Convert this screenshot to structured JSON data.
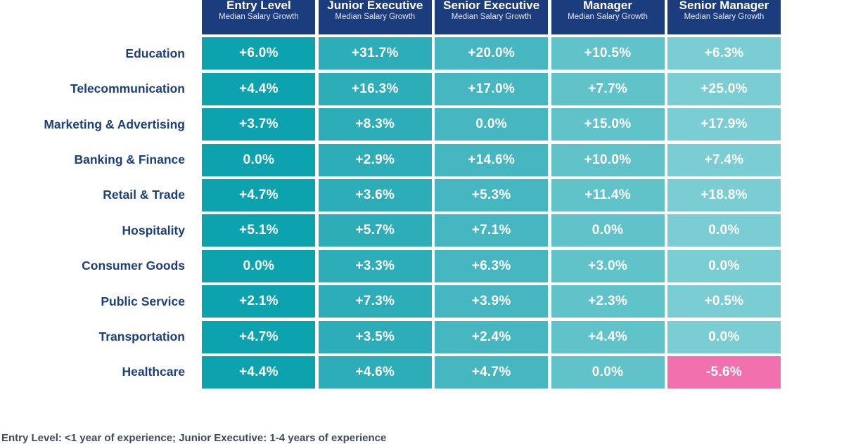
{
  "colors": {
    "header_bg": "#1B3D7D",
    "row_label_text": "#1C3F80",
    "cell_text": "#FFFFFF",
    "negative_cell_bg": "#F170AD",
    "footnote_text": "#3F4A5A",
    "column_colors": [
      "#0CA3AF",
      "#2CADB7",
      "#46B7C0",
      "#60C3CA",
      "#7ACDD3"
    ]
  },
  "table": {
    "columns": [
      {
        "title": "Entry Level",
        "subtitle": "Median Salary Growth",
        "color": "#0CA3AF"
      },
      {
        "title": "Junior Executive",
        "subtitle": "Median Salary Growth",
        "color": "#2CADB7"
      },
      {
        "title": "Senior Executive",
        "subtitle": "Median Salary Growth",
        "color": "#46B7C0"
      },
      {
        "title": "Manager",
        "subtitle": "Median Salary Growth",
        "color": "#60C3CA"
      },
      {
        "title": "Senior Manager",
        "subtitle": "Median Salary Growth",
        "color": "#7ACDD3"
      }
    ],
    "rows": [
      {
        "label": "Education",
        "values": [
          "+6.0%",
          "+31.7%",
          "+20.0%",
          "+10.5%",
          "+6.3%"
        ]
      },
      {
        "label": "Telecommunication",
        "values": [
          "+4.4%",
          "+16.3%",
          "+17.0%",
          "+7.7%",
          "+25.0%"
        ]
      },
      {
        "label": "Marketing & Advertising",
        "values": [
          "+3.7%",
          "+8.3%",
          "0.0%",
          "+15.0%",
          "+17.9%"
        ]
      },
      {
        "label": "Banking & Finance",
        "values": [
          "0.0%",
          "+2.9%",
          "+14.6%",
          "+10.0%",
          "+7.4%"
        ]
      },
      {
        "label": "Retail & Trade",
        "values": [
          "+4.7%",
          "+3.6%",
          "+5.3%",
          "+11.4%",
          "+18.8%"
        ]
      },
      {
        "label": "Hospitality",
        "values": [
          "+5.1%",
          "+5.7%",
          "+7.1%",
          "0.0%",
          "0.0%"
        ]
      },
      {
        "label": "Consumer Goods",
        "values": [
          "0.0%",
          "+3.3%",
          "+6.3%",
          "+3.0%",
          "0.0%"
        ]
      },
      {
        "label": "Public Service",
        "values": [
          "+2.1%",
          "+7.3%",
          "+3.9%",
          "+2.3%",
          "+0.5%"
        ]
      },
      {
        "label": "Transportation",
        "values": [
          "+4.7%",
          "+3.5%",
          "+2.4%",
          "+4.4%",
          "0.0%"
        ]
      },
      {
        "label": "Healthcare",
        "values": [
          "+4.4%",
          "+4.6%",
          "+4.7%",
          "0.0%",
          "-5.6%"
        ]
      }
    ],
    "cell_overrides": [
      {
        "row": 9,
        "col": 4,
        "color": "#F170AD"
      }
    ]
  },
  "footnote": "Entry Level: <1 year of experience; Junior Executive: 1-4 years of experience",
  "chart_data": {
    "type": "heatmap",
    "columns": [
      "Entry Level",
      "Junior Executive",
      "Senior Executive",
      "Manager",
      "Senior Manager"
    ],
    "column_subtitle": "Median Salary Growth",
    "rows": [
      "Education",
      "Telecommunication",
      "Marketing & Advertising",
      "Banking & Finance",
      "Retail & Trade",
      "Hospitality",
      "Consumer Goods",
      "Public Service",
      "Transportation",
      "Healthcare"
    ],
    "values_pct": [
      [
        6.0,
        31.7,
        20.0,
        10.5,
        6.3
      ],
      [
        4.4,
        16.3,
        17.0,
        7.7,
        25.0
      ],
      [
        3.7,
        8.3,
        0.0,
        15.0,
        17.9
      ],
      [
        0.0,
        2.9,
        14.6,
        10.0,
        7.4
      ],
      [
        4.7,
        3.6,
        5.3,
        11.4,
        18.8
      ],
      [
        5.1,
        5.7,
        7.1,
        0.0,
        0.0
      ],
      [
        0.0,
        3.3,
        6.3,
        3.0,
        0.0
      ],
      [
        2.1,
        7.3,
        3.9,
        2.3,
        0.5
      ],
      [
        4.7,
        3.5,
        2.4,
        4.4,
        0.0
      ],
      [
        4.4,
        4.6,
        4.7,
        0.0,
        -5.6
      ]
    ],
    "legend_position": "none",
    "grid": false,
    "notes": "Cell shading is a per-column teal gradient (darkest at Entry Level, lightest at Senior Manager); the single negative value (Healthcare / Senior Manager) is highlighted pink."
  }
}
